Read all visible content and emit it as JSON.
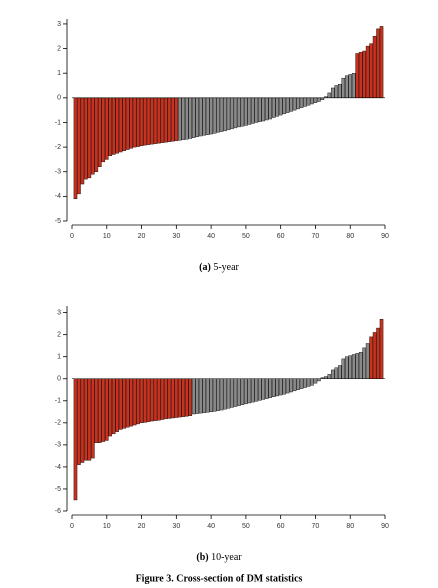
{
  "chart_data": [
    {
      "type": "bar",
      "label": "(a)",
      "title": "5-year",
      "x": [
        1,
        2,
        3,
        4,
        5,
        6,
        7,
        8,
        9,
        10,
        11,
        12,
        13,
        14,
        15,
        16,
        17,
        18,
        19,
        20,
        21,
        22,
        23,
        24,
        25,
        26,
        27,
        28,
        29,
        30,
        31,
        32,
        33,
        34,
        35,
        36,
        37,
        38,
        39,
        40,
        41,
        42,
        43,
        44,
        45,
        46,
        47,
        48,
        49,
        50,
        51,
        52,
        53,
        54,
        55,
        56,
        57,
        58,
        59,
        60,
        61,
        62,
        63,
        64,
        65,
        66,
        67,
        68,
        69,
        70,
        71,
        72,
        73,
        74,
        75,
        76,
        77,
        78,
        79,
        80,
        81,
        82,
        83,
        84,
        85,
        86,
        87,
        88,
        89
      ],
      "values": [
        -4.1,
        -3.9,
        -3.5,
        -3.3,
        -3.25,
        -3.1,
        -3.0,
        -2.8,
        -2.6,
        -2.5,
        -2.35,
        -2.3,
        -2.25,
        -2.2,
        -2.15,
        -2.1,
        -2.05,
        -2.0,
        -1.98,
        -1.95,
        -1.92,
        -1.9,
        -1.88,
        -1.86,
        -1.84,
        -1.82,
        -1.8,
        -1.78,
        -1.76,
        -1.74,
        -1.72,
        -1.7,
        -1.68,
        -1.65,
        -1.62,
        -1.58,
        -1.55,
        -1.52,
        -1.5,
        -1.47,
        -1.44,
        -1.4,
        -1.37,
        -1.34,
        -1.3,
        -1.26,
        -1.22,
        -1.18,
        -1.15,
        -1.12,
        -1.08,
        -1.04,
        -1.0,
        -0.97,
        -0.94,
        -0.9,
        -0.86,
        -0.8,
        -0.75,
        -0.7,
        -0.65,
        -0.6,
        -0.55,
        -0.5,
        -0.45,
        -0.4,
        -0.35,
        -0.3,
        -0.25,
        -0.2,
        -0.15,
        -0.08,
        0.05,
        0.2,
        0.4,
        0.5,
        0.55,
        0.8,
        0.9,
        0.95,
        1.0,
        1.8,
        1.85,
        1.9,
        2.1,
        2.2,
        2.5,
        2.8,
        2.9
      ],
      "colors": [
        "#c8321e",
        "#c8321e",
        "#c8321e",
        "#c8321e",
        "#c8321e",
        "#c8321e",
        "#c8321e",
        "#c8321e",
        "#c8321e",
        "#c8321e",
        "#c8321e",
        "#c8321e",
        "#c8321e",
        "#c8321e",
        "#c8321e",
        "#c8321e",
        "#c8321e",
        "#c8321e",
        "#c8321e",
        "#c8321e",
        "#c8321e",
        "#c8321e",
        "#c8321e",
        "#c8321e",
        "#c8321e",
        "#c8321e",
        "#c8321e",
        "#c8321e",
        "#c8321e",
        "#c8321e",
        "#8a8a8a",
        "#8a8a8a",
        "#8a8a8a",
        "#8a8a8a",
        "#8a8a8a",
        "#8a8a8a",
        "#8a8a8a",
        "#8a8a8a",
        "#8a8a8a",
        "#8a8a8a",
        "#8a8a8a",
        "#8a8a8a",
        "#8a8a8a",
        "#8a8a8a",
        "#8a8a8a",
        "#8a8a8a",
        "#8a8a8a",
        "#8a8a8a",
        "#8a8a8a",
        "#8a8a8a",
        "#8a8a8a",
        "#8a8a8a",
        "#8a8a8a",
        "#8a8a8a",
        "#8a8a8a",
        "#8a8a8a",
        "#8a8a8a",
        "#8a8a8a",
        "#8a8a8a",
        "#8a8a8a",
        "#8a8a8a",
        "#8a8a8a",
        "#8a8a8a",
        "#8a8a8a",
        "#8a8a8a",
        "#8a8a8a",
        "#8a8a8a",
        "#8a8a8a",
        "#8a8a8a",
        "#8a8a8a",
        "#8a8a8a",
        "#8a8a8a",
        "#8a8a8a",
        "#8a8a8a",
        "#8a8a8a",
        "#8a8a8a",
        "#8a8a8a",
        "#8a8a8a",
        "#8a8a8a",
        "#8a8a8a",
        "#8a8a8a",
        "#c8321e",
        "#c8321e",
        "#c8321e",
        "#c8321e",
        "#c8321e",
        "#c8321e",
        "#c8321e",
        "#c8321e"
      ],
      "xlim": [
        0,
        90
      ],
      "xticks": [
        0,
        10,
        20,
        30,
        40,
        50,
        60,
        70,
        80,
        90
      ],
      "ylim": [
        -5,
        3.2
      ],
      "yticks": [
        -5,
        -4,
        -3,
        -2,
        -1,
        0,
        1,
        2,
        3
      ]
    },
    {
      "type": "bar",
      "label": "(b)",
      "title": "10-year",
      "x": [
        1,
        2,
        3,
        4,
        5,
        6,
        7,
        8,
        9,
        10,
        11,
        12,
        13,
        14,
        15,
        16,
        17,
        18,
        19,
        20,
        21,
        22,
        23,
        24,
        25,
        26,
        27,
        28,
        29,
        30,
        31,
        32,
        33,
        34,
        35,
        36,
        37,
        38,
        39,
        40,
        41,
        42,
        43,
        44,
        45,
        46,
        47,
        48,
        49,
        50,
        51,
        52,
        53,
        54,
        55,
        56,
        57,
        58,
        59,
        60,
        61,
        62,
        63,
        64,
        65,
        66,
        67,
        68,
        69,
        70,
        71,
        72,
        73,
        74,
        75,
        76,
        77,
        78,
        79,
        80,
        81,
        82,
        83,
        84,
        85,
        86,
        87,
        88,
        89
      ],
      "values": [
        -5.5,
        -3.9,
        -3.8,
        -3.7,
        -3.7,
        -3.6,
        -2.9,
        -2.9,
        -2.85,
        -2.8,
        -2.6,
        -2.5,
        -2.4,
        -2.3,
        -2.25,
        -2.2,
        -2.15,
        -2.1,
        -2.05,
        -2.0,
        -1.98,
        -1.95,
        -1.92,
        -1.9,
        -1.88,
        -1.85,
        -1.82,
        -1.8,
        -1.78,
        -1.76,
        -1.74,
        -1.72,
        -1.7,
        -1.68,
        -1.6,
        -1.58,
        -1.56,
        -1.54,
        -1.52,
        -1.5,
        -1.48,
        -1.45,
        -1.42,
        -1.38,
        -1.34,
        -1.3,
        -1.26,
        -1.22,
        -1.18,
        -1.14,
        -1.1,
        -1.06,
        -1.02,
        -0.98,
        -0.94,
        -0.9,
        -0.86,
        -0.82,
        -0.78,
        -0.74,
        -0.7,
        -0.65,
        -0.6,
        -0.55,
        -0.5,
        -0.45,
        -0.4,
        -0.35,
        -0.3,
        -0.2,
        -0.1,
        0.05,
        0.1,
        0.2,
        0.4,
        0.5,
        0.6,
        0.9,
        1.0,
        1.05,
        1.1,
        1.15,
        1.2,
        1.4,
        1.6,
        1.9,
        2.1,
        2.3,
        2.7
      ],
      "colors": [
        "#c8321e",
        "#c8321e",
        "#c8321e",
        "#c8321e",
        "#c8321e",
        "#c8321e",
        "#c8321e",
        "#c8321e",
        "#c8321e",
        "#c8321e",
        "#c8321e",
        "#c8321e",
        "#c8321e",
        "#c8321e",
        "#c8321e",
        "#c8321e",
        "#c8321e",
        "#c8321e",
        "#c8321e",
        "#c8321e",
        "#c8321e",
        "#c8321e",
        "#c8321e",
        "#c8321e",
        "#c8321e",
        "#c8321e",
        "#c8321e",
        "#c8321e",
        "#c8321e",
        "#c8321e",
        "#c8321e",
        "#c8321e",
        "#c8321e",
        "#c8321e",
        "#8a8a8a",
        "#8a8a8a",
        "#8a8a8a",
        "#8a8a8a",
        "#8a8a8a",
        "#8a8a8a",
        "#8a8a8a",
        "#8a8a8a",
        "#8a8a8a",
        "#8a8a8a",
        "#8a8a8a",
        "#8a8a8a",
        "#8a8a8a",
        "#8a8a8a",
        "#8a8a8a",
        "#8a8a8a",
        "#8a8a8a",
        "#8a8a8a",
        "#8a8a8a",
        "#8a8a8a",
        "#8a8a8a",
        "#8a8a8a",
        "#8a8a8a",
        "#8a8a8a",
        "#8a8a8a",
        "#8a8a8a",
        "#8a8a8a",
        "#8a8a8a",
        "#8a8a8a",
        "#8a8a8a",
        "#8a8a8a",
        "#8a8a8a",
        "#8a8a8a",
        "#8a8a8a",
        "#8a8a8a",
        "#8a8a8a",
        "#8a8a8a",
        "#8a8a8a",
        "#8a8a8a",
        "#8a8a8a",
        "#8a8a8a",
        "#8a8a8a",
        "#8a8a8a",
        "#8a8a8a",
        "#8a8a8a",
        "#8a8a8a",
        "#8a8a8a",
        "#8a8a8a",
        "#8a8a8a",
        "#8a8a8a",
        "#8a8a8a",
        "#c8321e",
        "#c8321e",
        "#c8321e",
        "#c8321e"
      ],
      "xlim": [
        0,
        90
      ],
      "xticks": [
        0,
        10,
        20,
        30,
        40,
        50,
        60,
        70,
        80,
        90
      ],
      "ylim": [
        -6,
        3.3
      ],
      "yticks": [
        -6,
        -5,
        -4,
        -3,
        -2,
        -1,
        0,
        1,
        2,
        3
      ]
    }
  ],
  "caption": "Figure 3.  Cross-section of DM statistics"
}
